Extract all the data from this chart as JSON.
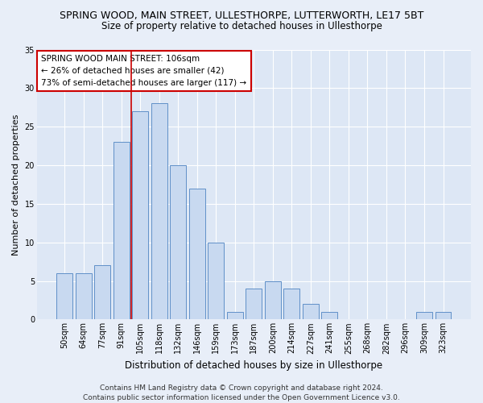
{
  "title": "SPRING WOOD, MAIN STREET, ULLESTHORPE, LUTTERWORTH, LE17 5BT",
  "subtitle": "Size of property relative to detached houses in Ullesthorpe",
  "xlabel": "Distribution of detached houses by size in Ullesthorpe",
  "ylabel": "Number of detached properties",
  "categories": [
    "50sqm",
    "64sqm",
    "77sqm",
    "91sqm",
    "105sqm",
    "118sqm",
    "132sqm",
    "146sqm",
    "159sqm",
    "173sqm",
    "187sqm",
    "200sqm",
    "214sqm",
    "227sqm",
    "241sqm",
    "255sqm",
    "268sqm",
    "282sqm",
    "296sqm",
    "309sqm",
    "323sqm"
  ],
  "values": [
    6,
    6,
    7,
    23,
    27,
    28,
    20,
    17,
    10,
    1,
    4,
    5,
    4,
    2,
    1,
    0,
    0,
    0,
    0,
    1,
    1
  ],
  "bar_color": "#c8d9f0",
  "bar_edge_color": "#6090c8",
  "highlight_index": 4,
  "highlight_color": "#cc0000",
  "annotation_line1": "SPRING WOOD MAIN STREET: 106sqm",
  "annotation_line2": "← 26% of detached houses are smaller (42)",
  "annotation_line3": "73% of semi-detached houses are larger (117) →",
  "ylim": [
    0,
    35
  ],
  "yticks": [
    0,
    5,
    10,
    15,
    20,
    25,
    30,
    35
  ],
  "footer_line1": "Contains HM Land Registry data © Crown copyright and database right 2024.",
  "footer_line2": "Contains public sector information licensed under the Open Government Licence v3.0.",
  "bg_color": "#e8eef8",
  "plot_bg_color": "#dde7f5",
  "title_fontsize": 9,
  "subtitle_fontsize": 8.5,
  "xlabel_fontsize": 8.5,
  "ylabel_fontsize": 8,
  "tick_fontsize": 7,
  "footer_fontsize": 6.5,
  "annotation_fontsize": 7.5
}
